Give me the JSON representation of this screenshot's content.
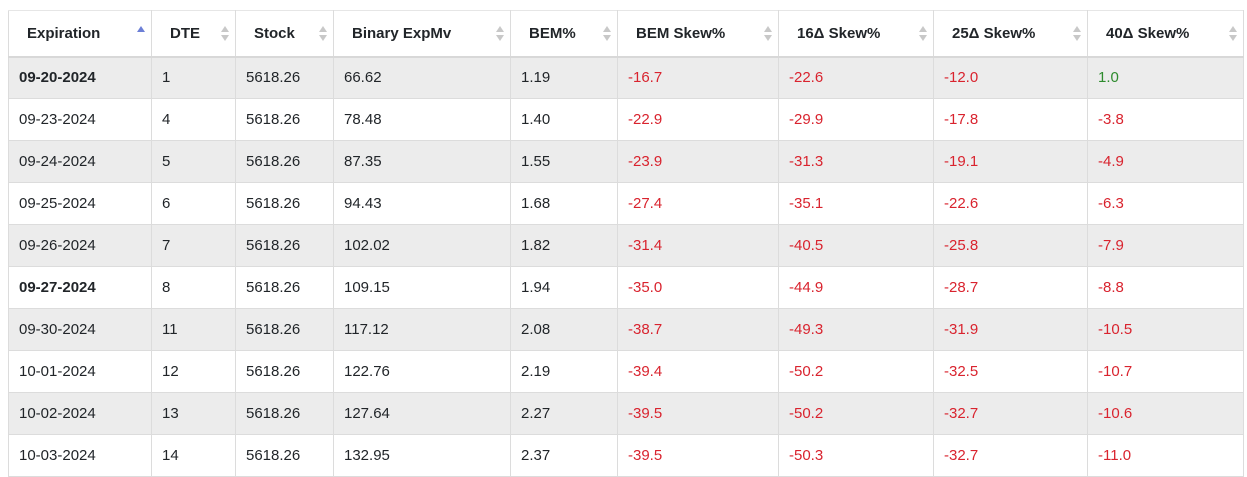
{
  "columns": [
    "Expiration",
    "DTE",
    "Stock",
    "Binary ExpMv",
    "BEM%",
    "BEM Skew%",
    "16Δ Skew%",
    "25Δ Skew%",
    "40Δ Skew%"
  ],
  "sorted_column": "Expiration",
  "sort_direction": "asc",
  "colors": {
    "negative": "#d9232e",
    "positive": "#2e8b2e",
    "sort_active": "#6c7fd6",
    "row_stripe": "#ececec"
  },
  "rows": [
    {
      "expiration": "09-20-2024",
      "bold": true,
      "dte": "1",
      "stock": "5618.26",
      "bem": "66.62",
      "bem_pct": "1.19",
      "bem_skew": "-16.7",
      "skew16": "-22.6",
      "skew25": "-12.0",
      "skew40": "1.0"
    },
    {
      "expiration": "09-23-2024",
      "bold": false,
      "dte": "4",
      "stock": "5618.26",
      "bem": "78.48",
      "bem_pct": "1.40",
      "bem_skew": "-22.9",
      "skew16": "-29.9",
      "skew25": "-17.8",
      "skew40": "-3.8"
    },
    {
      "expiration": "09-24-2024",
      "bold": false,
      "dte": "5",
      "stock": "5618.26",
      "bem": "87.35",
      "bem_pct": "1.55",
      "bem_skew": "-23.9",
      "skew16": "-31.3",
      "skew25": "-19.1",
      "skew40": "-4.9"
    },
    {
      "expiration": "09-25-2024",
      "bold": false,
      "dte": "6",
      "stock": "5618.26",
      "bem": "94.43",
      "bem_pct": "1.68",
      "bem_skew": "-27.4",
      "skew16": "-35.1",
      "skew25": "-22.6",
      "skew40": "-6.3"
    },
    {
      "expiration": "09-26-2024",
      "bold": false,
      "dte": "7",
      "stock": "5618.26",
      "bem": "102.02",
      "bem_pct": "1.82",
      "bem_skew": "-31.4",
      "skew16": "-40.5",
      "skew25": "-25.8",
      "skew40": "-7.9"
    },
    {
      "expiration": "09-27-2024",
      "bold": true,
      "dte": "8",
      "stock": "5618.26",
      "bem": "109.15",
      "bem_pct": "1.94",
      "bem_skew": "-35.0",
      "skew16": "-44.9",
      "skew25": "-28.7",
      "skew40": "-8.8"
    },
    {
      "expiration": "09-30-2024",
      "bold": false,
      "dte": "11",
      "stock": "5618.26",
      "bem": "117.12",
      "bem_pct": "2.08",
      "bem_skew": "-38.7",
      "skew16": "-49.3",
      "skew25": "-31.9",
      "skew40": "-10.5"
    },
    {
      "expiration": "10-01-2024",
      "bold": false,
      "dte": "12",
      "stock": "5618.26",
      "bem": "122.76",
      "bem_pct": "2.19",
      "bem_skew": "-39.4",
      "skew16": "-50.2",
      "skew25": "-32.5",
      "skew40": "-10.7"
    },
    {
      "expiration": "10-02-2024",
      "bold": false,
      "dte": "13",
      "stock": "5618.26",
      "bem": "127.64",
      "bem_pct": "2.27",
      "bem_skew": "-39.5",
      "skew16": "-50.2",
      "skew25": "-32.7",
      "skew40": "-10.6"
    },
    {
      "expiration": "10-03-2024",
      "bold": false,
      "dte": "14",
      "stock": "5618.26",
      "bem": "132.95",
      "bem_pct": "2.37",
      "bem_skew": "-39.5",
      "skew16": "-50.3",
      "skew25": "-32.7",
      "skew40": "-11.0"
    }
  ]
}
